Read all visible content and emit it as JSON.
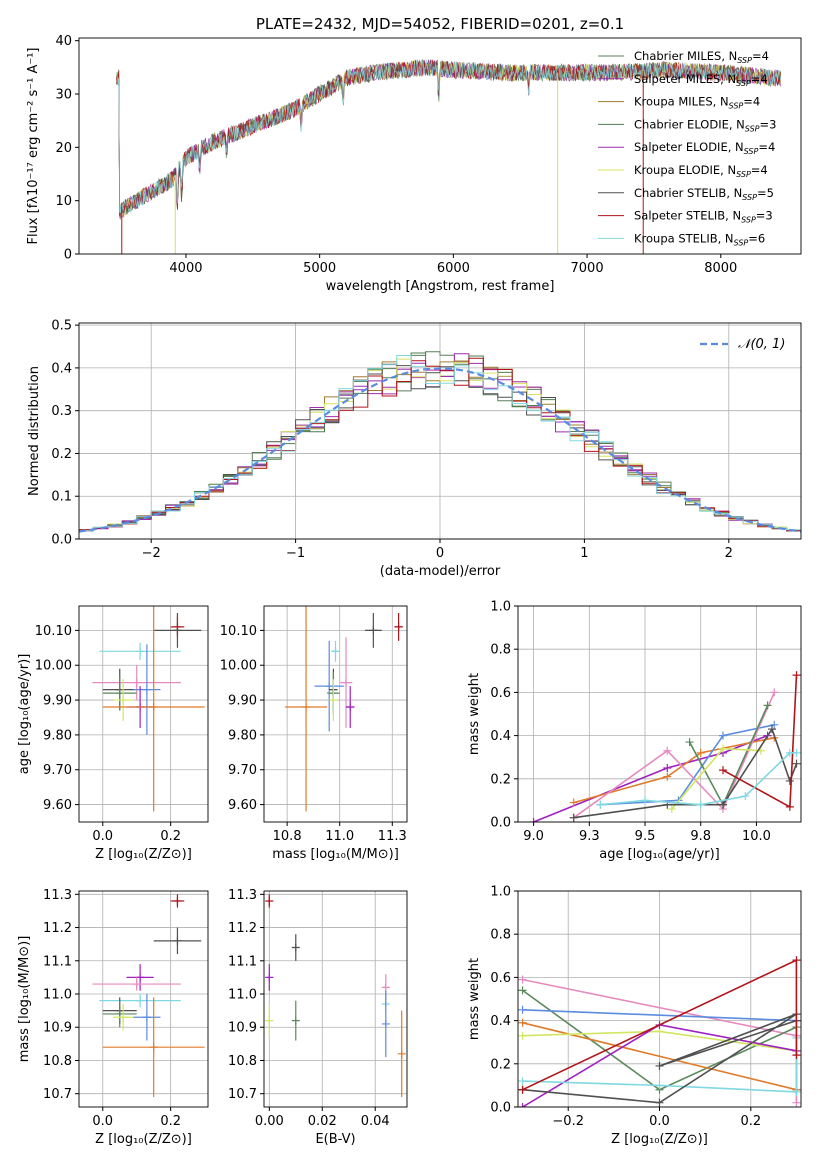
{
  "figure_title": "PLATE=2432, MJD=54052, FIBERID=0201, z=0.1",
  "legend_spectrum": [
    {
      "label": "Chabrier MILES, N",
      "sub": "SSP",
      "tail": "=4"
    },
    {
      "label": "Salpeter MILES, N",
      "sub": "SSP",
      "tail": "=4"
    },
    {
      "label": "Kroupa MILES, N",
      "sub": "SSP",
      "tail": "=4"
    },
    {
      "label": "Chabrier ELODIE, N",
      "sub": "SSP",
      "tail": "=3"
    },
    {
      "label": "Salpeter ELODIE, N",
      "sub": "SSP",
      "tail": "=4"
    },
    {
      "label": "Kroupa ELODIE, N",
      "sub": "SSP",
      "tail": "=4"
    },
    {
      "label": "Chabrier STELIB, N",
      "sub": "SSP",
      "tail": "=5"
    },
    {
      "label": "Salpeter STELIB, N",
      "sub": "SSP",
      "tail": "=3"
    },
    {
      "label": "Kroupa STELIB, N",
      "sub": "SSP",
      "tail": "=6"
    }
  ],
  "legend_normal": "𝒩(0, 1)",
  "colors": [
    "#5b7f5b",
    "#9b2fb0",
    "#a07d32",
    "#4f7f4f",
    "#a02fb0",
    "#d8e060",
    "#505050",
    "#b0151a",
    "#80d8e0"
  ],
  "series_colors": {
    "blue": "#5b8ce0",
    "orange": "#e07b2a",
    "green": "#5a8a5a",
    "purple": "#a020c0",
    "pink": "#e68ac0",
    "yellow": "#d2e660",
    "gray": "#505050",
    "red": "#b0151a",
    "cyan": "#80d8e0"
  },
  "chart_data": [
    {
      "id": "spectrum",
      "type": "line",
      "xlabel": "wavelength [Angstrom, rest frame]",
      "ylabel": "Flux [fλ10⁻¹⁷ erg cm⁻² s⁻¹ A⁻¹]",
      "xlim": [
        3200,
        8600
      ],
      "ylim": [
        0,
        40.5
      ],
      "xticks": [
        4000,
        5000,
        6000,
        7000,
        8000
      ],
      "yticks": [
        0,
        10,
        20,
        30,
        40
      ],
      "continuum": [
        [
          3500,
          8
        ],
        [
          3700,
          11
        ],
        [
          3900,
          14
        ],
        [
          4000,
          18
        ],
        [
          4200,
          21
        ],
        [
          4400,
          23
        ],
        [
          4600,
          25
        ],
        [
          4800,
          27
        ],
        [
          5000,
          30
        ],
        [
          5200,
          33
        ],
        [
          5400,
          34
        ],
        [
          5600,
          34.5
        ],
        [
          5800,
          35
        ],
        [
          6000,
          34.5
        ],
        [
          6400,
          34
        ],
        [
          6800,
          34
        ],
        [
          7200,
          34
        ],
        [
          7600,
          34.5
        ],
        [
          8000,
          34
        ],
        [
          8400,
          33
        ]
      ],
      "grid": false
    },
    {
      "id": "residuals",
      "type": "histogram",
      "xlabel": "(data-model)/error",
      "ylabel": "Normed distribution",
      "xlim": [
        -2.5,
        2.5
      ],
      "ylim": [
        0,
        0.505
      ],
      "xticks": [
        -2,
        -1,
        0,
        1,
        2
      ],
      "yticks": [
        0.0,
        0.1,
        0.2,
        0.3,
        0.4,
        0.5
      ],
      "bin_width": 0.1,
      "legend": "top-right",
      "grid": true
    },
    {
      "id": "age_vs_Z",
      "type": "scatter",
      "xlabel": "Z [log₁₀(Z/Z⊙)]",
      "ylabel": "age  [log₁₀(age/yr)]",
      "xlim": [
        -0.07,
        0.31
      ],
      "ylim": [
        9.55,
        10.17
      ],
      "xticks": [
        0.0,
        0.2
      ],
      "yticks": [
        9.6,
        9.7,
        9.8,
        9.9,
        10.0,
        10.1
      ],
      "grid": true,
      "points": [
        {
          "c": "cyan",
          "x": 0.11,
          "y": 10.04,
          "xe": 0.12,
          "ye": 0.025
        },
        {
          "c": "red",
          "x": 0.22,
          "y": 10.11,
          "xe": 0.02,
          "ye": 0.03
        },
        {
          "c": "gray",
          "x": 0.22,
          "y": 10.1,
          "xe": 0.07,
          "ye": 0.05
        },
        {
          "c": "pink",
          "x": 0.1,
          "y": 9.95,
          "xe": 0.13,
          "ye": 0.05
        },
        {
          "c": "gray",
          "x": 0.05,
          "y": 9.93,
          "xe": 0.05,
          "ye": 0.06
        },
        {
          "c": "blue",
          "x": 0.13,
          "y": 9.93,
          "xe": 0.04,
          "ye": 0.13
        },
        {
          "c": "green",
          "x": 0.05,
          "y": 9.92,
          "xe": 0.05,
          "ye": 0.05
        },
        {
          "c": "yellow",
          "x": 0.06,
          "y": 9.9,
          "xe": 0.03,
          "ye": 0.06
        },
        {
          "c": "purple",
          "x": 0.11,
          "y": 9.88,
          "xe": 0.04,
          "ye": 0.06
        },
        {
          "c": "orange",
          "x": 0.15,
          "y": 9.88,
          "xe": 0.15,
          "ye": 0.3
        }
      ]
    },
    {
      "id": "age_vs_mass",
      "type": "scatter",
      "xlabel": "mass [log₁₀(M/M⊙)]",
      "ylabel": "",
      "xlim": [
        10.64,
        11.32
      ],
      "ylim": [
        9.55,
        10.17
      ],
      "xticks": [
        10.75,
        11.0,
        11.25
      ],
      "yticks": [
        9.6,
        9.7,
        9.8,
        9.9,
        10.0,
        10.1
      ],
      "grid": true,
      "points": [
        {
          "c": "red",
          "x": 11.28,
          "y": 10.11,
          "xe": 0.02,
          "ye": 0.04
        },
        {
          "c": "gray",
          "x": 11.16,
          "y": 10.1,
          "xe": 0.04,
          "ye": 0.05
        },
        {
          "c": "cyan",
          "x": 10.98,
          "y": 10.04,
          "xe": 0.02,
          "ye": 0.03
        },
        {
          "c": "pink",
          "x": 11.03,
          "y": 9.95,
          "xe": 0.03,
          "ye": 0.13
        },
        {
          "c": "blue",
          "x": 10.95,
          "y": 9.94,
          "xe": 0.07,
          "ye": 0.13
        },
        {
          "c": "gray",
          "x": 10.97,
          "y": 9.93,
          "xe": 0.02,
          "ye": 0.06
        },
        {
          "c": "green",
          "x": 10.97,
          "y": 9.92,
          "xe": 0.03,
          "ye": 0.06
        },
        {
          "c": "yellow",
          "x": 10.97,
          "y": 9.9,
          "xe": 0.02,
          "ye": 0.06
        },
        {
          "c": "purple",
          "x": 11.05,
          "y": 9.88,
          "xe": 0.02,
          "ye": 0.06
        },
        {
          "c": "orange",
          "x": 10.84,
          "y": 9.88,
          "xe": 0.1,
          "ye": 0.3
        }
      ]
    },
    {
      "id": "weight_vs_age",
      "type": "line",
      "xlabel": "age  [log₁₀(age/yr)]",
      "ylabel": "mass weight",
      "xlim": [
        8.93,
        10.2
      ],
      "ylim": [
        0,
        1.0
      ],
      "xticks": [
        9.0,
        9.25,
        9.5,
        9.75,
        10.0
      ],
      "yticks": [
        0.0,
        0.2,
        0.4,
        0.6,
        0.8,
        1.0
      ],
      "grid": true,
      "series": [
        {
          "c": "purple",
          "x": [
            9.0,
            9.6,
            9.85,
            10.05
          ],
          "y": [
            0.0,
            0.25,
            0.32,
            0.4
          ]
        },
        {
          "c": "orange",
          "x": [
            9.18,
            9.6,
            9.75,
            10.08
          ],
          "y": [
            0.09,
            0.21,
            0.32,
            0.39
          ]
        },
        {
          "c": "blue",
          "x": [
            9.3,
            9.65,
            9.85,
            10.08
          ],
          "y": [
            0.08,
            0.1,
            0.4,
            0.45
          ]
        },
        {
          "c": "pink",
          "x": [
            9.18,
            9.6,
            9.85,
            10.08
          ],
          "y": [
            0.02,
            0.33,
            0.06,
            0.6
          ]
        },
        {
          "c": "green",
          "x": [
            9.7,
            9.85,
            10.05
          ],
          "y": [
            0.37,
            0.08,
            0.54
          ]
        },
        {
          "c": "yellow",
          "x": [
            9.62,
            9.85,
            10.02
          ],
          "y": [
            0.06,
            0.34,
            0.33
          ]
        },
        {
          "c": "gray",
          "x": [
            9.18,
            9.6,
            9.85,
            10.07,
            10.15,
            10.18
          ],
          "y": [
            0.02,
            0.08,
            0.08,
            0.43,
            0.19,
            0.27
          ]
        },
        {
          "c": "red",
          "x": [
            9.85,
            10.15,
            10.18
          ],
          "y": [
            0.24,
            0.07,
            0.68
          ]
        },
        {
          "c": "cyan",
          "x": [
            9.3,
            9.5,
            9.75,
            9.95,
            10.15,
            10.18
          ],
          "y": [
            0.08,
            0.1,
            0.08,
            0.12,
            0.32,
            0.32
          ]
        }
      ]
    },
    {
      "id": "mass_vs_Z",
      "type": "scatter",
      "xlabel": "Z [log₁₀(Z/Z⊙)]",
      "ylabel": "mass [log₁₀(M/M⊙)]",
      "xlim": [
        -0.07,
        0.31
      ],
      "ylim": [
        10.66,
        11.31
      ],
      "xticks": [
        0.0,
        0.2
      ],
      "yticks": [
        10.7,
        10.8,
        10.9,
        11.0,
        11.1,
        11.2,
        11.3
      ],
      "grid": true,
      "points": [
        {
          "c": "red",
          "x": 0.22,
          "y": 11.28,
          "xe": 0.02,
          "ye": 0.02
        },
        {
          "c": "gray",
          "x": 0.22,
          "y": 11.16,
          "xe": 0.07,
          "ye": 0.04
        },
        {
          "c": "purple",
          "x": 0.11,
          "y": 11.05,
          "xe": 0.04,
          "ye": 0.04
        },
        {
          "c": "pink",
          "x": 0.1,
          "y": 11.03,
          "xe": 0.13,
          "ye": 0.02
        },
        {
          "c": "cyan",
          "x": 0.11,
          "y": 10.98,
          "xe": 0.12,
          "ye": 0.02
        },
        {
          "c": "blue",
          "x": 0.13,
          "y": 10.93,
          "xe": 0.04,
          "ye": 0.07
        },
        {
          "c": "gray",
          "x": 0.05,
          "y": 10.95,
          "xe": 0.05,
          "ye": 0.04
        },
        {
          "c": "green",
          "x": 0.05,
          "y": 10.94,
          "xe": 0.05,
          "ye": 0.04
        },
        {
          "c": "yellow",
          "x": 0.06,
          "y": 10.93,
          "xe": 0.03,
          "ye": 0.04
        },
        {
          "c": "orange",
          "x": 0.15,
          "y": 10.84,
          "xe": 0.15,
          "ye": 0.15
        }
      ]
    },
    {
      "id": "mass_vs_ebv",
      "type": "scatter",
      "xlabel": "E(B-V)",
      "ylabel": "",
      "xlim": [
        -0.002,
        0.052
      ],
      "ylim": [
        10.66,
        11.31
      ],
      "xticks": [
        0.0,
        0.02,
        0.04
      ],
      "yticks": [
        10.7,
        10.8,
        10.9,
        11.0,
        11.1,
        11.2,
        11.3
      ],
      "grid": true,
      "points": [
        {
          "c": "red",
          "x": 0.0,
          "y": 11.28,
          "xe": 0,
          "ye": 0.02
        },
        {
          "c": "purple",
          "x": 0.0,
          "y": 11.05,
          "xe": 0,
          "ye": 0.04
        },
        {
          "c": "yellow",
          "x": 0.0,
          "y": 10.92,
          "xe": 0,
          "ye": 0.05
        },
        {
          "c": "gray",
          "x": 0.01,
          "y": 11.14,
          "xe": 0,
          "ye": 0.04
        },
        {
          "c": "green",
          "x": 0.01,
          "y": 10.92,
          "xe": 0,
          "ye": 0.06
        },
        {
          "c": "pink",
          "x": 0.044,
          "y": 11.02,
          "xe": 0,
          "ye": 0.04
        },
        {
          "c": "cyan",
          "x": 0.044,
          "y": 10.97,
          "xe": 0,
          "ye": 0.02
        },
        {
          "c": "blue",
          "x": 0.044,
          "y": 10.91,
          "xe": 0,
          "ye": 0.1
        },
        {
          "c": "orange",
          "x": 0.05,
          "y": 10.82,
          "xe": 0,
          "ye": 0.13
        }
      ]
    },
    {
      "id": "weight_vs_Z",
      "type": "line",
      "xlabel": "Z [log₁₀(Z/Z⊙)]",
      "ylabel": "mass weight",
      "xlim": [
        -0.31,
        0.31
      ],
      "ylim": [
        0,
        1.0
      ],
      "xticks": [
        -0.2,
        0.0,
        0.2
      ],
      "yticks": [
        0.0,
        0.2,
        0.4,
        0.6,
        0.8,
        1.0
      ],
      "grid": true,
      "series": [
        {
          "c": "pink",
          "x": [
            -0.3,
            0.3,
            0.3
          ],
          "y": [
            0.59,
            0.33,
            0.02
          ]
        },
        {
          "c": "green",
          "x": [
            -0.3,
            0.0,
            0.3
          ],
          "y": [
            0.54,
            0.08,
            0.37
          ]
        },
        {
          "c": "blue",
          "x": [
            -0.3,
            0.3,
            0.3
          ],
          "y": [
            0.45,
            0.4,
            0.08
          ]
        },
        {
          "c": "orange",
          "x": [
            -0.3,
            0.3
          ],
          "y": [
            0.39,
            0.08
          ]
        },
        {
          "c": "yellow",
          "x": [
            -0.3,
            0.0,
            0.3
          ],
          "y": [
            0.33,
            0.35,
            0.26
          ]
        },
        {
          "c": "purple",
          "x": [
            -0.3,
            0.0,
            0.3
          ],
          "y": [
            0.0,
            0.38,
            0.26
          ]
        },
        {
          "c": "cyan",
          "x": [
            -0.3,
            0.0,
            0.3,
            0.3
          ],
          "y": [
            0.12,
            0.1,
            0.07,
            0.32
          ]
        },
        {
          "c": "gray",
          "x": [
            -0.3,
            0.0,
            0.3,
            0.0,
            0.3
          ],
          "y": [
            0.08,
            0.02,
            0.43,
            0.19,
            0.4
          ]
        },
        {
          "c": "red",
          "x": [
            -0.3,
            0.3,
            0.3
          ],
          "y": [
            0.08,
            0.68,
            0.24
          ]
        }
      ]
    }
  ]
}
